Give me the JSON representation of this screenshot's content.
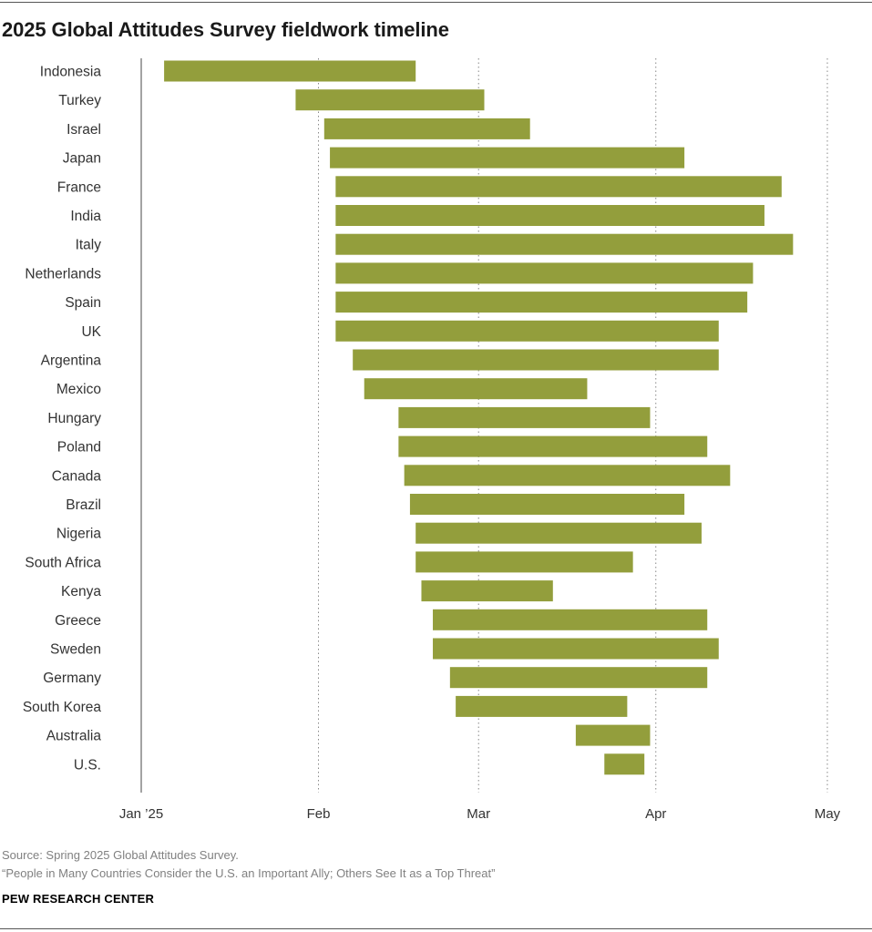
{
  "title": "2025 Global Attitudes Survey fieldwork timeline",
  "source": "Source: Spring 2025 Global Attitudes Survey.",
  "note": "“People in Many Countries Consider the U.S. an Important Ally; Others See It as a Top Threat”",
  "brand": "PEW RESEARCH CENTER",
  "colors": {
    "bar": "#939e3c",
    "axis": "#666666",
    "gridline": "#888888",
    "label": "#333333"
  },
  "chart_data": {
    "type": "bar",
    "orientation": "horizontal-range",
    "x_axis": {
      "type": "date",
      "ticks": [
        {
          "label": "Jan ’25",
          "date": "2025-01-01"
        },
        {
          "label": "Feb",
          "date": "2025-02-01"
        },
        {
          "label": "Mar",
          "date": "2025-03-01"
        },
        {
          "label": "Apr",
          "date": "2025-04-01"
        },
        {
          "label": "May",
          "date": "2025-05-01"
        }
      ],
      "range": [
        "2025-01-01",
        "2025-05-01"
      ],
      "gridlines": "dotted"
    },
    "categories": [
      "Indonesia",
      "Turkey",
      "Israel",
      "Japan",
      "France",
      "India",
      "Italy",
      "Netherlands",
      "Spain",
      "UK",
      "Argentina",
      "Mexico",
      "Hungary",
      "Poland",
      "Canada",
      "Brazil",
      "Nigeria",
      "South Africa",
      "Kenya",
      "Greece",
      "Sweden",
      "Germany",
      "South Korea",
      "Australia",
      "U.S."
    ],
    "ranges": [
      {
        "start": "2025-01-05",
        "end": "2025-02-18"
      },
      {
        "start": "2025-01-28",
        "end": "2025-03-02"
      },
      {
        "start": "2025-02-02",
        "end": "2025-03-10"
      },
      {
        "start": "2025-02-03",
        "end": "2025-04-06"
      },
      {
        "start": "2025-02-04",
        "end": "2025-04-23"
      },
      {
        "start": "2025-02-04",
        "end": "2025-04-20"
      },
      {
        "start": "2025-02-04",
        "end": "2025-04-25"
      },
      {
        "start": "2025-02-04",
        "end": "2025-04-18"
      },
      {
        "start": "2025-02-04",
        "end": "2025-04-17"
      },
      {
        "start": "2025-02-04",
        "end": "2025-04-12"
      },
      {
        "start": "2025-02-07",
        "end": "2025-04-12"
      },
      {
        "start": "2025-02-09",
        "end": "2025-03-20"
      },
      {
        "start": "2025-02-15",
        "end": "2025-03-31"
      },
      {
        "start": "2025-02-15",
        "end": "2025-04-10"
      },
      {
        "start": "2025-02-16",
        "end": "2025-04-14"
      },
      {
        "start": "2025-02-17",
        "end": "2025-04-06"
      },
      {
        "start": "2025-02-18",
        "end": "2025-04-09"
      },
      {
        "start": "2025-02-18",
        "end": "2025-03-28"
      },
      {
        "start": "2025-02-19",
        "end": "2025-03-14"
      },
      {
        "start": "2025-02-21",
        "end": "2025-04-10"
      },
      {
        "start": "2025-02-21",
        "end": "2025-04-12"
      },
      {
        "start": "2025-02-24",
        "end": "2025-04-10"
      },
      {
        "start": "2025-02-25",
        "end": "2025-03-27"
      },
      {
        "start": "2025-03-18",
        "end": "2025-03-31"
      },
      {
        "start": "2025-03-23",
        "end": "2025-03-30"
      }
    ]
  }
}
